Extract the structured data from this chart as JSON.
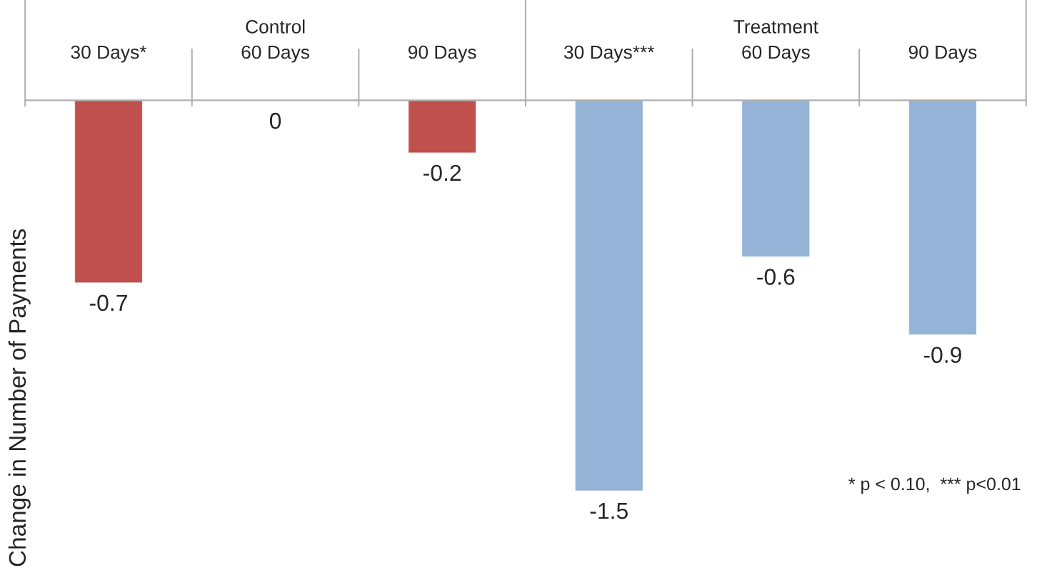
{
  "chart_data": {
    "type": "bar",
    "ylabel": "Change in Number of Payments",
    "categories": [
      "30 Days*",
      "60 Days",
      "90 Days",
      "30 Days***",
      "60 Days",
      "90 Days"
    ],
    "series": [
      {
        "color": "#c0504d",
        "values": [
          -0.7,
          0,
          -0.2,
          null,
          null,
          null
        ]
      },
      {
        "color": "#95b3d7",
        "values": [
          null,
          null,
          null,
          -1.5,
          -0.6,
          -0.9
        ]
      }
    ],
    "data_labels": true,
    "grid": false,
    "legend": false,
    "annotations": [
      "Control",
      "Treatment",
      "* p < 0.10,  *** p<0.01"
    ]
  }
}
